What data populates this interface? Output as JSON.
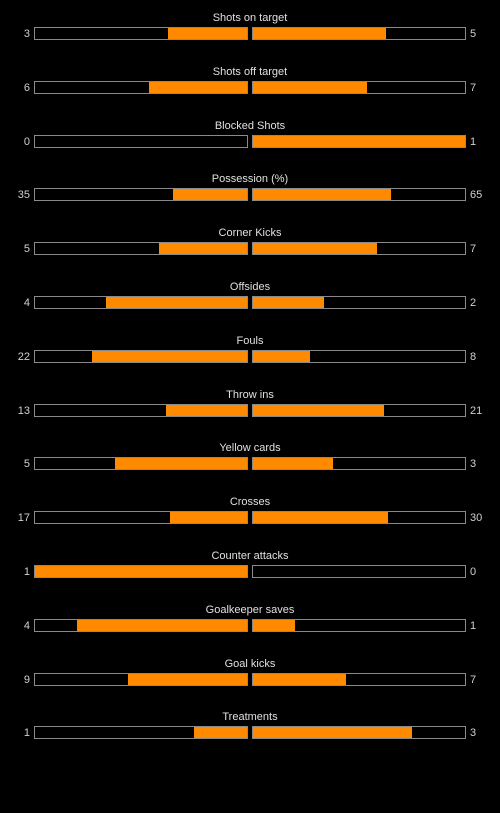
{
  "colors": {
    "background": "#000000",
    "fill": "#ff8a00",
    "bar_border": "#8a8a8a",
    "text": "#e0e0e0"
  },
  "stats": [
    {
      "label": "Shots on target",
      "home": "3",
      "away": "5",
      "home_share": 0.375,
      "away_share": 0.625
    },
    {
      "label": "Shots off target",
      "home": "6",
      "away": "7",
      "home_share": 0.4615,
      "away_share": 0.5385
    },
    {
      "label": "Blocked Shots",
      "home": "0",
      "away": "1",
      "home_share": 0,
      "away_share": 1
    },
    {
      "label": "Possession (%)",
      "home": "35",
      "away": "65",
      "home_share": 0.35,
      "away_share": 0.65
    },
    {
      "label": "Corner Kicks",
      "home": "5",
      "away": "7",
      "home_share": 0.4167,
      "away_share": 0.5833
    },
    {
      "label": "Offsides",
      "home": "4",
      "away": "2",
      "home_share": 0.6667,
      "away_share": 0.3333
    },
    {
      "label": "Fouls",
      "home": "22",
      "away": "8",
      "home_share": 0.7333,
      "away_share": 0.2667
    },
    {
      "label": "Throw ins",
      "home": "13",
      "away": "21",
      "home_share": 0.3824,
      "away_share": 0.6176
    },
    {
      "label": "Yellow cards",
      "home": "5",
      "away": "3",
      "home_share": 0.625,
      "away_share": 0.375
    },
    {
      "label": "Crosses",
      "home": "17",
      "away": "30",
      "home_share": 0.3617,
      "away_share": 0.6383
    },
    {
      "label": "Counter attacks",
      "home": "1",
      "away": "0",
      "home_share": 1,
      "away_share": 0
    },
    {
      "label": "Goalkeeper saves",
      "home": "4",
      "away": "1",
      "home_share": 0.8,
      "away_share": 0.2
    },
    {
      "label": "Goal kicks",
      "home": "9",
      "away": "7",
      "home_share": 0.5625,
      "away_share": 0.4375
    },
    {
      "label": "Treatments",
      "home": "1",
      "away": "3",
      "home_share": 0.25,
      "away_share": 0.75
    }
  ]
}
